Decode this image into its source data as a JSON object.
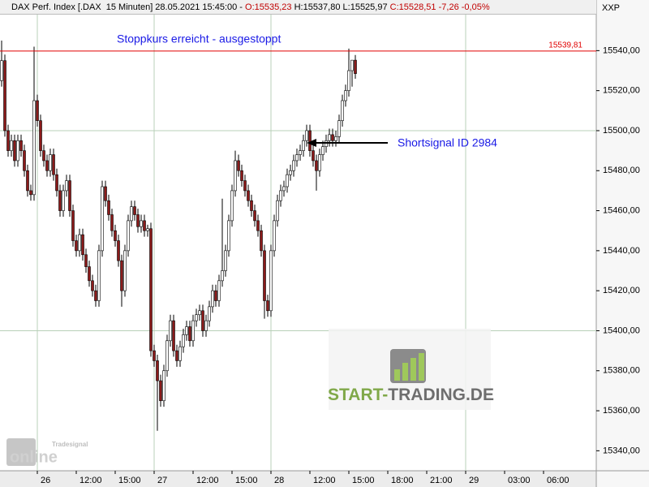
{
  "chart_data": {
    "type": "candlestick",
    "header": {
      "instrument": "DAX Perf. Index [.DAX  15 Minuten] 28.05.2021 15:45:00 - ",
      "open": "O:15535,23",
      "high": "H:15537,80",
      "low": "L:15525,97",
      "close": "C:15528,51",
      "change": "-7,26",
      "change_pct": "-0,05%"
    },
    "axis_name": "XXP",
    "annotations": [
      {
        "text": "Stoppkurs erreicht - ausgestoppt",
        "color": "#1a1ae6"
      },
      {
        "text": "Shortsignal ID 2984",
        "color": "#1a1ae6"
      }
    ],
    "stop_line": {
      "value": 15539.81,
      "label": "15539,81",
      "color": "#e00000"
    },
    "watermark": [
      "START-",
      "TRADING.DE"
    ],
    "logo": [
      "Tradesignal",
      "online"
    ],
    "ylim": [
      15330,
      15558
    ],
    "yticks": [
      {
        "value": 15340,
        "label": "15340,00"
      },
      {
        "value": 15360,
        "label": "15360,00"
      },
      {
        "value": 15380,
        "label": "15380,00"
      },
      {
        "value": 15400,
        "label": "15400,00"
      },
      {
        "value": 15420,
        "label": "15420,00"
      },
      {
        "value": 15440,
        "label": "15440,00"
      },
      {
        "value": 15460,
        "label": "15460,00"
      },
      {
        "value": 15480,
        "label": "15480,00"
      },
      {
        "value": 15500,
        "label": "15500,00"
      },
      {
        "value": 15520,
        "label": "15520,00"
      },
      {
        "value": 15540,
        "label": "15540,00"
      }
    ],
    "grid_y": [
      15400,
      15500
    ],
    "up_color": "#ffffff",
    "down_color": "#8b1a1a",
    "categories": [
      null,
      null,
      null,
      null,
      null,
      null,
      null,
      null,
      null,
      null,
      null,
      "26",
      null,
      null,
      null,
      null,
      null,
      null,
      null,
      null,
      null,
      null,
      null,
      "12:00",
      null,
      null,
      null,
      null,
      null,
      null,
      null,
      null,
      null,
      null,
      null,
      "15:00",
      null,
      null,
      null,
      null,
      null,
      null,
      null,
      null,
      null,
      null,
      null,
      "27",
      null,
      null,
      null,
      null,
      null,
      null,
      null,
      null,
      null,
      null,
      null,
      "12:00",
      null,
      null,
      null,
      null,
      null,
      null,
      null,
      null,
      null,
      null,
      null,
      "15:00",
      null,
      null,
      null,
      null,
      null,
      null,
      null,
      null,
      null,
      null,
      null,
      "28",
      null,
      null,
      null,
      null,
      null,
      null,
      null,
      null,
      null,
      null,
      null,
      "12:00",
      null,
      null,
      null,
      null,
      null,
      null,
      null,
      null,
      null,
      null,
      null,
      "15:00",
      null,
      null,
      null,
      null,
      null,
      null,
      null,
      null,
      null,
      null,
      null,
      "18:00",
      null,
      null,
      null,
      null,
      null,
      null,
      null,
      null,
      null,
      null,
      null,
      "21:00",
      null,
      null,
      null,
      null,
      null,
      null,
      null,
      null,
      null,
      null,
      null,
      "29",
      null,
      null,
      null,
      null,
      null,
      null,
      null,
      null,
      null,
      null,
      null,
      "03:00",
      null,
      null,
      null,
      null,
      null,
      null,
      null,
      null,
      null,
      null,
      null,
      "06:00"
    ],
    "open": [
      15525,
      15535,
      15500,
      15490,
      15495,
      15485,
      15495,
      15490,
      15480,
      15470,
      15468,
      15515,
      15505,
      15490,
      15485,
      15480,
      15488,
      15478,
      15470,
      15460,
      15470,
      15475,
      15460,
      15445,
      15440,
      15448,
      15438,
      15432,
      15425,
      15420,
      15415,
      15440,
      15472,
      15465,
      15458,
      15450,
      15445,
      15435,
      15420,
      15440,
      15455,
      15462,
      15458,
      15452,
      15455,
      15450,
      15451,
      15390,
      15385,
      15375,
      15365,
      15380,
      15395,
      15405,
      15390,
      15385,
      15392,
      15398,
      15402,
      15395,
      15405,
      15408,
      15410,
      15400,
      15405,
      15412,
      15420,
      15415,
      15425,
      15430,
      15440,
      15455,
      15470,
      15485,
      15480,
      15475,
      15470,
      15465,
      15460,
      15455,
      15450,
      15440,
      15415,
      15410,
      15440,
      15455,
      15465,
      15470,
      15472,
      15478,
      15480,
      15485,
      15488,
      15490,
      15495,
      15500,
      15490,
      15485,
      15480,
      15488,
      15492,
      15495,
      15498,
      15495,
      15497,
      15505,
      15515,
      15520,
      15530,
      15535.23,
      null,
      null,
      null,
      null,
      null,
      null,
      null,
      null,
      null,
      null,
      null,
      null,
      null,
      null,
      null,
      null,
      null,
      null,
      null,
      null,
      null,
      null,
      null,
      null,
      null,
      null,
      null,
      null,
      null,
      null,
      null,
      null,
      null,
      null,
      null,
      null,
      null,
      null,
      null,
      null,
      null,
      null,
      null,
      null,
      null,
      null,
      null,
      null,
      null,
      null,
      null,
      null,
      null,
      null,
      null,
      null,
      null,
      null
    ],
    "high": [
      15545,
      15538,
      15503,
      15498,
      15498,
      15498,
      15498,
      15493,
      15483,
      15473,
      15542,
      15518,
      15508,
      15493,
      15488,
      15491,
      15491,
      15481,
      15473,
      15473,
      15478,
      15478,
      15463,
      15448,
      15451,
      15451,
      15441,
      15435,
      15428,
      15423,
      15443,
      15475,
      15475,
      15468,
      15461,
      15453,
      15448,
      15438,
      15443,
      15458,
      15465,
      15465,
      15461,
      15458,
      15458,
      15453,
      15454,
      15393,
      15388,
      15378,
      15383,
      15398,
      15408,
      15408,
      15393,
      15395,
      15401,
      15405,
      15405,
      15408,
      15411,
      15413,
      15413,
      15408,
      15415,
      15423,
      15423,
      15428,
      15466,
      15443,
      15458,
      15473,
      15490,
      15488,
      15483,
      15478,
      15473,
      15468,
      15463,
      15458,
      15453,
      15443,
      15418,
      15443,
      15458,
      15468,
      15473,
      15475,
      15481,
      15483,
      15488,
      15491,
      15493,
      15498,
      15503,
      15503,
      15493,
      15488,
      15491,
      15495,
      15498,
      15501,
      15501,
      15500,
      15508,
      15518,
      15523,
      15541,
      15533,
      15537.8,
      null,
      null,
      null,
      null,
      null,
      null,
      null,
      null,
      null,
      null,
      null,
      null,
      null,
      null,
      null,
      null,
      null,
      null,
      null,
      null,
      null,
      null,
      null,
      null,
      null,
      null,
      null,
      null,
      null,
      null,
      null,
      null,
      null,
      null,
      null,
      null,
      null,
      null,
      null,
      null,
      null,
      null,
      null,
      null,
      null,
      null,
      null,
      null,
      null,
      null,
      null,
      null,
      null,
      null,
      null,
      null,
      null,
      null
    ],
    "low": [
      15522,
      15497,
      15487,
      15487,
      15482,
      15482,
      15487,
      15477,
      15467,
      15465,
      15465,
      15502,
      15487,
      15482,
      15477,
      15477,
      15475,
      15467,
      15457,
      15457,
      15467,
      15457,
      15442,
      15437,
      15437,
      15435,
      15429,
      15422,
      15417,
      15412,
      15412,
      15437,
      15462,
      15455,
      15447,
      15442,
      15432,
      15412,
      15417,
      15437,
      15452,
      15455,
      15449,
      15449,
      15447,
      15447,
      15387,
      15382,
      15350,
      15362,
      15362,
      15377,
      15392,
      15387,
      15382,
      15382,
      15389,
      15395,
      15392,
      15392,
      15402,
      15405,
      15397,
      15397,
      15402,
      15409,
      15412,
      15412,
      15422,
      15427,
      15437,
      15452,
      15467,
      15477,
      15472,
      15467,
      15462,
      15457,
      15452,
      15447,
      15437,
      15406,
      15407,
      15407,
      15437,
      15452,
      15462,
      15467,
      15469,
      15475,
      15477,
      15482,
      15485,
      15487,
      15492,
      15487,
      15482,
      15470,
      15477,
      15485,
      15489,
      15492,
      15492,
      15492,
      15494,
      15502,
      15512,
      15517,
      15522,
      15525.97,
      null,
      null,
      null,
      null,
      null,
      null,
      null,
      null,
      null,
      null,
      null,
      null,
      null,
      null,
      null,
      null,
      null,
      null,
      null,
      null,
      null,
      null,
      null,
      null,
      null,
      null,
      null,
      null,
      null,
      null,
      null,
      null,
      null,
      null,
      null,
      null,
      null,
      null,
      null,
      null,
      null,
      null,
      null,
      null,
      null,
      null,
      null,
      null,
      null,
      null,
      null,
      null,
      null,
      null,
      null,
      null,
      null,
      null
    ],
    "close": [
      15535,
      15500,
      15490,
      15495,
      15485,
      15495,
      15490,
      15480,
      15470,
      15468,
      15515,
      15505,
      15490,
      15485,
      15480,
      15488,
      15478,
      15470,
      15460,
      15470,
      15475,
      15460,
      15445,
      15440,
      15448,
      15438,
      15432,
      15425,
      15420,
      15415,
      15440,
      15472,
      15465,
      15458,
      15450,
      15445,
      15435,
      15420,
      15440,
      15455,
      15462,
      15458,
      15452,
      15455,
      15450,
      15451,
      15390,
      15385,
      15375,
      15365,
      15380,
      15395,
      15405,
      15390,
      15385,
      15392,
      15398,
      15402,
      15395,
      15405,
      15408,
      15410,
      15400,
      15405,
      15412,
      15420,
      15415,
      15425,
      15430,
      15440,
      15455,
      15470,
      15485,
      15480,
      15475,
      15470,
      15465,
      15460,
      15455,
      15450,
      15440,
      15415,
      15410,
      15440,
      15455,
      15465,
      15470,
      15472,
      15478,
      15480,
      15485,
      15488,
      15490,
      15495,
      15500,
      15490,
      15485,
      15480,
      15488,
      15492,
      15495,
      15498,
      15495,
      15497,
      15505,
      15515,
      15520,
      15530,
      15535.23,
      15528.51,
      null,
      null,
      null,
      null,
      null,
      null,
      null,
      null,
      null,
      null,
      null,
      null,
      null,
      null,
      null,
      null,
      null,
      null,
      null,
      null,
      null,
      null,
      null,
      null,
      null,
      null,
      null,
      null,
      null,
      null,
      null,
      null,
      null,
      null,
      null,
      null,
      null,
      null,
      null,
      null,
      null,
      null,
      null,
      null,
      null,
      null,
      null,
      null,
      null,
      null,
      null,
      null,
      null,
      null,
      null,
      null,
      null,
      null
    ]
  }
}
